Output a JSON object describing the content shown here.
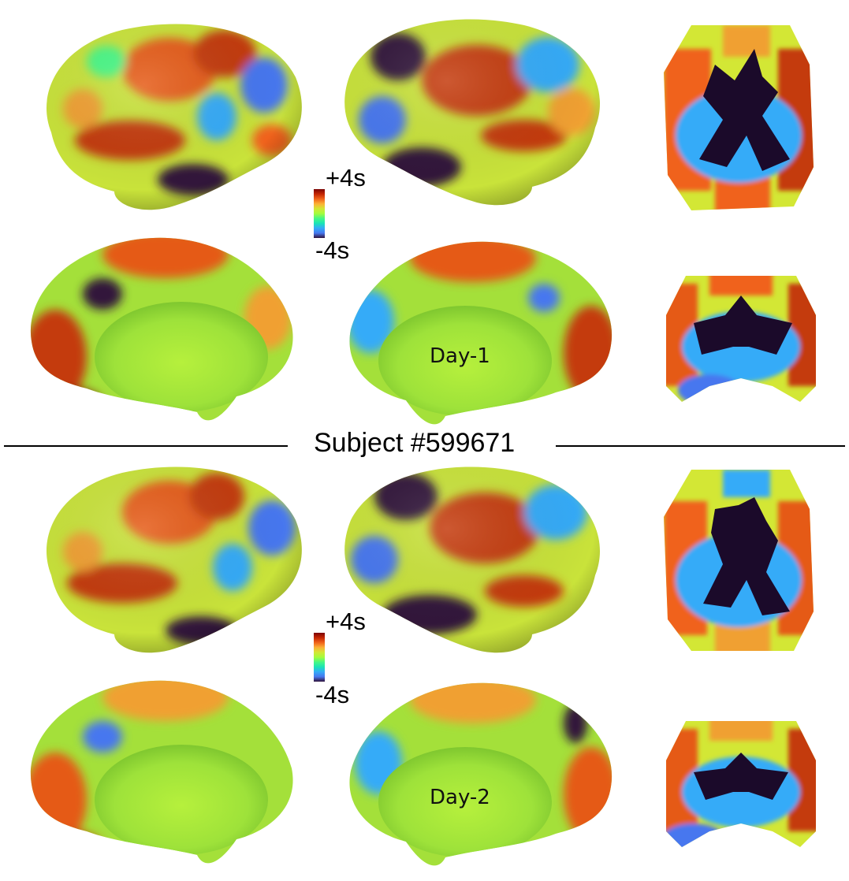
{
  "colorbar": {
    "max_label": "+4s",
    "min_label": "-4s",
    "colormap": [
      "#7a0403",
      "#c42503",
      "#f0621a",
      "#fcb036",
      "#d3e735",
      "#a4fc3c",
      "#46f884",
      "#1ae4b6",
      "#35abf8",
      "#4777ef",
      "#30123b"
    ]
  },
  "divider": {
    "subject_label": "Subject #599671"
  },
  "sessions": [
    {
      "day_label": "Day-1"
    },
    {
      "day_label": "Day-2"
    }
  ],
  "colors": {
    "dark_red": "#7a0403",
    "red": "#c42503",
    "orange": "#f0621a",
    "yellow": "#d3e735",
    "green": "#a4fc3c",
    "cyan": "#1ae4b6",
    "blue": "#4777ef",
    "dark": "#2a0a3a"
  }
}
